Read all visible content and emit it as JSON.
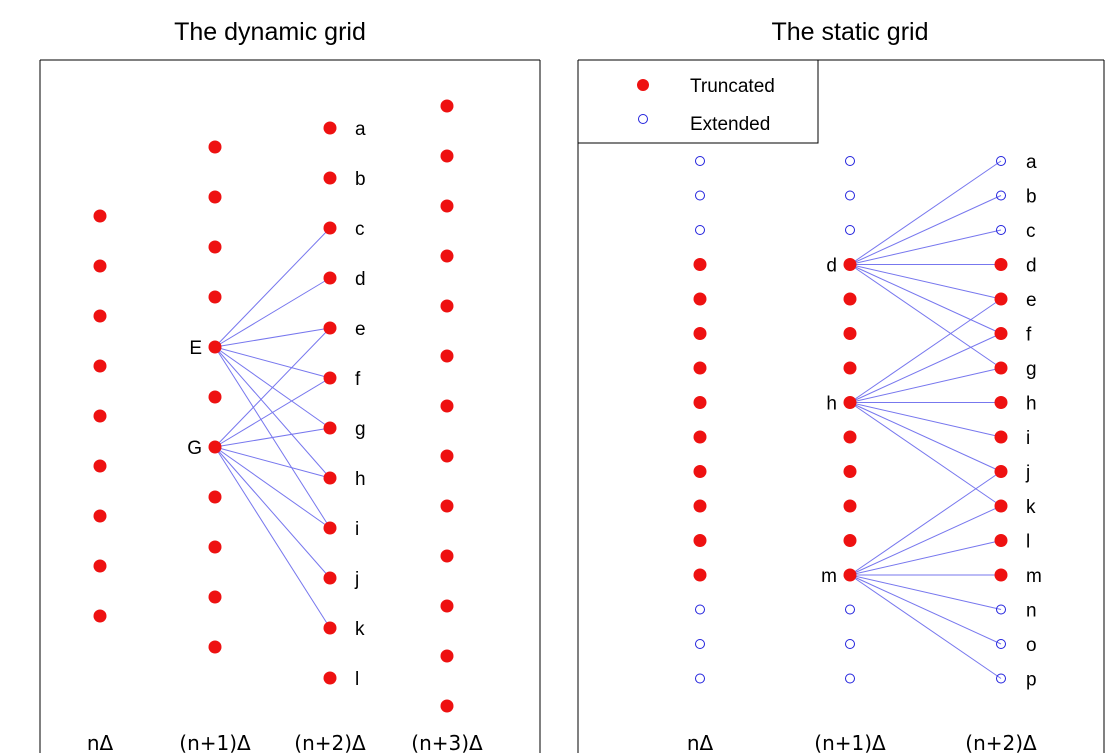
{
  "left_panel": {
    "title": "The dynamic grid",
    "columns": [
      {
        "label": "nΔ",
        "points": [
          {
            "kind": "truncated",
            "tag": ""
          },
          {
            "kind": "truncated",
            "tag": ""
          },
          {
            "kind": "truncated",
            "tag": ""
          },
          {
            "kind": "truncated",
            "tag": ""
          },
          {
            "kind": "truncated",
            "tag": ""
          },
          {
            "kind": "truncated",
            "tag": ""
          },
          {
            "kind": "truncated",
            "tag": ""
          },
          {
            "kind": "truncated",
            "tag": ""
          },
          {
            "kind": "truncated",
            "tag": ""
          }
        ]
      },
      {
        "label": "(n+1)Δ",
        "points": [
          {
            "kind": "truncated",
            "tag": ""
          },
          {
            "kind": "truncated",
            "tag": ""
          },
          {
            "kind": "truncated",
            "tag": ""
          },
          {
            "kind": "truncated",
            "tag": ""
          },
          {
            "kind": "truncated",
            "tag": "E"
          },
          {
            "kind": "truncated",
            "tag": ""
          },
          {
            "kind": "truncated",
            "tag": "G"
          },
          {
            "kind": "truncated",
            "tag": ""
          },
          {
            "kind": "truncated",
            "tag": ""
          },
          {
            "kind": "truncated",
            "tag": ""
          },
          {
            "kind": "truncated",
            "tag": ""
          }
        ]
      },
      {
        "label": "(n+2)Δ",
        "points": [
          {
            "kind": "truncated",
            "tag": "a"
          },
          {
            "kind": "truncated",
            "tag": "b"
          },
          {
            "kind": "truncated",
            "tag": "c"
          },
          {
            "kind": "truncated",
            "tag": "d"
          },
          {
            "kind": "truncated",
            "tag": "e"
          },
          {
            "kind": "truncated",
            "tag": "f"
          },
          {
            "kind": "truncated",
            "tag": "g"
          },
          {
            "kind": "truncated",
            "tag": "h"
          },
          {
            "kind": "truncated",
            "tag": "i"
          },
          {
            "kind": "truncated",
            "tag": "j"
          },
          {
            "kind": "truncated",
            "tag": "k"
          },
          {
            "kind": "truncated",
            "tag": "l"
          }
        ]
      },
      {
        "label": "(n+3)Δ",
        "points": [
          {
            "kind": "truncated",
            "tag": ""
          },
          {
            "kind": "truncated",
            "tag": ""
          },
          {
            "kind": "truncated",
            "tag": ""
          },
          {
            "kind": "truncated",
            "tag": ""
          },
          {
            "kind": "truncated",
            "tag": ""
          },
          {
            "kind": "truncated",
            "tag": ""
          },
          {
            "kind": "truncated",
            "tag": ""
          },
          {
            "kind": "truncated",
            "tag": ""
          },
          {
            "kind": "truncated",
            "tag": ""
          },
          {
            "kind": "truncated",
            "tag": ""
          },
          {
            "kind": "truncated",
            "tag": ""
          },
          {
            "kind": "truncated",
            "tag": ""
          },
          {
            "kind": "truncated",
            "tag": ""
          }
        ]
      }
    ],
    "connections": [
      {
        "from": "E",
        "to": [
          "c",
          "d",
          "e",
          "f",
          "g",
          "h",
          "i"
        ]
      },
      {
        "from": "G",
        "to": [
          "e",
          "f",
          "g",
          "h",
          "i",
          "j",
          "k"
        ]
      }
    ]
  },
  "right_panel": {
    "title": "The static grid",
    "legend": [
      {
        "kind": "truncated",
        "label": "Truncated"
      },
      {
        "kind": "extended",
        "label": "Extended"
      }
    ],
    "columns": [
      {
        "label": "nΔ",
        "points": [
          {
            "kind": "extended",
            "tag": ""
          },
          {
            "kind": "extended",
            "tag": ""
          },
          {
            "kind": "extended",
            "tag": ""
          },
          {
            "kind": "truncated",
            "tag": ""
          },
          {
            "kind": "truncated",
            "tag": ""
          },
          {
            "kind": "truncated",
            "tag": ""
          },
          {
            "kind": "truncated",
            "tag": ""
          },
          {
            "kind": "truncated",
            "tag": ""
          },
          {
            "kind": "truncated",
            "tag": ""
          },
          {
            "kind": "truncated",
            "tag": ""
          },
          {
            "kind": "truncated",
            "tag": ""
          },
          {
            "kind": "truncated",
            "tag": ""
          },
          {
            "kind": "truncated",
            "tag": ""
          },
          {
            "kind": "extended",
            "tag": ""
          },
          {
            "kind": "extended",
            "tag": ""
          },
          {
            "kind": "extended",
            "tag": ""
          }
        ]
      },
      {
        "label": "(n+1)Δ",
        "points": [
          {
            "kind": "extended",
            "tag": ""
          },
          {
            "kind": "extended",
            "tag": ""
          },
          {
            "kind": "extended",
            "tag": ""
          },
          {
            "kind": "truncated",
            "tag": "d"
          },
          {
            "kind": "truncated",
            "tag": ""
          },
          {
            "kind": "truncated",
            "tag": ""
          },
          {
            "kind": "truncated",
            "tag": ""
          },
          {
            "kind": "truncated",
            "tag": "h"
          },
          {
            "kind": "truncated",
            "tag": ""
          },
          {
            "kind": "truncated",
            "tag": ""
          },
          {
            "kind": "truncated",
            "tag": ""
          },
          {
            "kind": "truncated",
            "tag": ""
          },
          {
            "kind": "truncated",
            "tag": "m"
          },
          {
            "kind": "extended",
            "tag": ""
          },
          {
            "kind": "extended",
            "tag": ""
          },
          {
            "kind": "extended",
            "tag": ""
          }
        ]
      },
      {
        "label": "(n+2)Δ",
        "points": [
          {
            "kind": "extended",
            "tag": "a"
          },
          {
            "kind": "extended",
            "tag": "b"
          },
          {
            "kind": "extended",
            "tag": "c"
          },
          {
            "kind": "truncated",
            "tag": "d"
          },
          {
            "kind": "truncated",
            "tag": "e"
          },
          {
            "kind": "truncated",
            "tag": "f"
          },
          {
            "kind": "truncated",
            "tag": "g"
          },
          {
            "kind": "truncated",
            "tag": "h"
          },
          {
            "kind": "truncated",
            "tag": "i"
          },
          {
            "kind": "truncated",
            "tag": "j"
          },
          {
            "kind": "truncated",
            "tag": "k"
          },
          {
            "kind": "truncated",
            "tag": "l"
          },
          {
            "kind": "truncated",
            "tag": "m"
          },
          {
            "kind": "extended",
            "tag": "n"
          },
          {
            "kind": "extended",
            "tag": "o"
          },
          {
            "kind": "extended",
            "tag": "p"
          }
        ]
      }
    ],
    "connections": [
      {
        "from": "d",
        "to": [
          "a",
          "b",
          "c",
          "d",
          "e",
          "f",
          "g"
        ]
      },
      {
        "from": "h",
        "to": [
          "e",
          "f",
          "g",
          "h",
          "i",
          "j",
          "k"
        ]
      },
      {
        "from": "m",
        "to": [
          "j",
          "k",
          "l",
          "m",
          "n",
          "o",
          "p"
        ]
      }
    ]
  },
  "colors": {
    "truncated": "#ee1111",
    "extended": "#2222dd",
    "connection": "#7777ee",
    "frame": "#000000"
  }
}
